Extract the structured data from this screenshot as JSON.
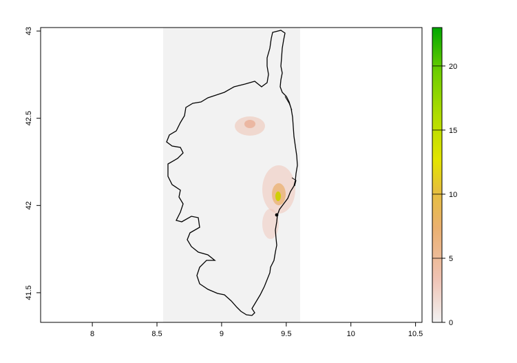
{
  "map": {
    "x_axis": {
      "ticks": [
        {
          "value": 8,
          "label": "8"
        },
        {
          "value": 8.5,
          "label": "8.5"
        },
        {
          "value": 9,
          "label": "9"
        },
        {
          "value": 9.5,
          "label": "9.5"
        },
        {
          "value": 10,
          "label": "10"
        },
        {
          "value": 10.5,
          "label": "10.5"
        }
      ],
      "range": [
        7.6,
        10.55
      ]
    },
    "y_axis": {
      "ticks": [
        {
          "value": 41.5,
          "label": "41.5"
        },
        {
          "value": 42,
          "label": "42"
        },
        {
          "value": 42.5,
          "label": "42.5"
        },
        {
          "value": 43,
          "label": "43"
        }
      ],
      "range": [
        41.33,
        43.02
      ]
    },
    "raster_extent": {
      "lon": [
        8.53,
        9.59
      ],
      "lat": [
        41.33,
        43.02
      ]
    },
    "colors": {
      "raster_bg": "#f2f2f2",
      "outline": "#000000"
    }
  },
  "legend": {
    "ticks": [
      {
        "value": 0,
        "label": "0"
      },
      {
        "value": 5,
        "label": "5"
      },
      {
        "value": 10,
        "label": "10"
      },
      {
        "value": 15,
        "label": "15"
      },
      {
        "value": 20,
        "label": "20"
      }
    ],
    "range": [
      0,
      23
    ],
    "colors": [
      "#f2f2f2",
      "#efc2b3",
      "#eab070",
      "#e6c03a",
      "#e3e400",
      "#b0dc00",
      "#6ece00",
      "#00a600"
    ]
  }
}
